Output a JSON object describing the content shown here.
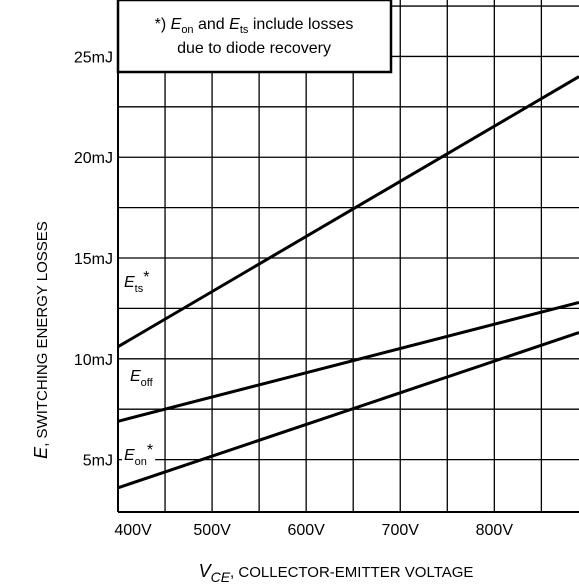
{
  "chart_data": {
    "type": "line",
    "xlabel": {
      "symbol": "V",
      "symbol_sub": "CE",
      "text": ", COLLECTOR-EMITTER VOLTAGE"
    },
    "ylabel": {
      "symbol": "E",
      "text": ", SWITCHING ENERGY LOSSES"
    },
    "xlim": [
      400,
      890
    ],
    "ylim": [
      2.4,
      27.8
    ],
    "x_ticks": [
      400,
      500,
      600,
      700,
      800
    ],
    "x_tick_labels": [
      "400V",
      "500V",
      "600V",
      "700V",
      "800V"
    ],
    "y_ticks": [
      5,
      10,
      15,
      20,
      25
    ],
    "y_tick_labels": [
      "5mJ",
      "10mJ",
      "15mJ",
      "20mJ",
      "25mJ"
    ],
    "grid": true,
    "note": {
      "line1_prefix": "*) ",
      "line1_e1": "E",
      "line1_e1_sub": "on",
      "line1_and": " and ",
      "line1_e2": "E",
      "line1_e2_sub": "ts",
      "line1_suffix": " include losses",
      "line2": "due to diode recovery"
    },
    "series": [
      {
        "name": "E_ts*",
        "label": {
          "main": "E",
          "sub": "ts",
          "star": "*"
        },
        "x": [
          400,
          890
        ],
        "values": [
          10.6,
          24.0
        ],
        "color": "#000000"
      },
      {
        "name": "E_off",
        "label": {
          "main": "E",
          "sub": "off",
          "star": ""
        },
        "x": [
          400,
          890
        ],
        "values": [
          6.9,
          12.8
        ],
        "color": "#000000"
      },
      {
        "name": "E_on*",
        "label": {
          "main": "E",
          "sub": "on",
          "star": "*"
        },
        "x": [
          400,
          890
        ],
        "values": [
          3.6,
          11.3
        ],
        "color": "#000000"
      }
    ]
  }
}
